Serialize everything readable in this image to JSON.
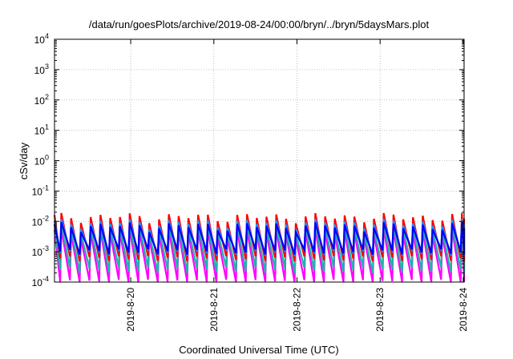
{
  "chart_data": {
    "type": "line",
    "title": "/data/run/goesPlots/archive/2019-08-24/00:00/bryn/../bryn/5daysMars.plot",
    "xlabel": "Coordinated Universal Time (UTC)",
    "ylabel": "cSv/day",
    "yscale": "log",
    "ylim": [
      0.0001,
      10000
    ],
    "xlim": [
      "2019-08-19T02:00",
      "2019-08-24T00:15"
    ],
    "grid": true,
    "yticks": [
      {
        "base": "10",
        "exp": "-4",
        "value": 0.0001
      },
      {
        "base": "10",
        "exp": "-3",
        "value": 0.001
      },
      {
        "base": "10",
        "exp": "-2",
        "value": 0.01
      },
      {
        "base": "10",
        "exp": "-1",
        "value": 0.1
      },
      {
        "base": "10",
        "exp": "0",
        "value": 1
      },
      {
        "base": "10",
        "exp": "1",
        "value": 10
      },
      {
        "base": "10",
        "exp": "2",
        "value": 100
      },
      {
        "base": "10",
        "exp": "3",
        "value": 1000
      },
      {
        "base": "10",
        "exp": "4",
        "value": 10000
      }
    ],
    "xticks": [
      {
        "label": "2019-8-20",
        "value": "2019-08-20T00:00"
      },
      {
        "label": "2019-8-21",
        "value": "2019-08-21T00:00"
      },
      {
        "label": "2019-8-22",
        "value": "2019-08-22T00:00"
      },
      {
        "label": "2019-8-23",
        "value": "2019-08-23T00:00"
      },
      {
        "label": "2019-8-24",
        "value": "2019-08-24T00:00"
      }
    ],
    "sawtooth_period_hours": 2.82,
    "series": [
      {
        "color": "#ff00ff",
        "peak": 0.0045,
        "trough": 0.0001
      },
      {
        "color": "#20b2aa",
        "peak": 0.0065,
        "trough": 0.00025
      },
      {
        "color": "#ff0000",
        "peak": 0.014,
        "trough": 0.0006
      },
      {
        "color": "#1e90ff",
        "peak": 0.009,
        "trough": 0.0009
      },
      {
        "color": "#0000ff",
        "peak": 0.007,
        "trough": 0.001
      }
    ]
  }
}
